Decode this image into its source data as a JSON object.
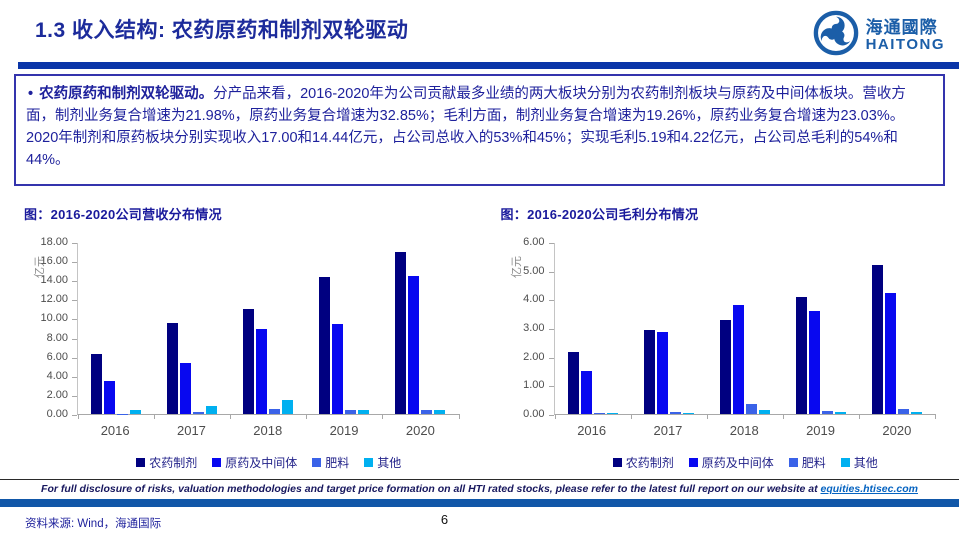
{
  "header": {
    "title": "1.3 收入结构: 农药原药和制剂双轮驱动",
    "logo_cn": "海通國際",
    "logo_en": "HAITONG"
  },
  "summary": {
    "bullet": "•",
    "lead": "农药原药和制剂双轮驱动。",
    "body": "分产品来看，2016-2020年为公司贡献最多业绩的两大板块分别为农药制剂板块与原药及中间体板块。营收方面，制剂业务复合增速为21.98%，原药业务复合增速为32.85%；毛利方面，制剂业务复合增速为19.26%，原药业务复合增速为23.03%。2020年制剂和原药板块分别实现收入17.00和14.44亿元，占公司总收入的53%和45%；实现毛利5.19和4.22亿元，占公司总毛利的54%和44%。"
  },
  "chart_data": [
    {
      "type": "bar",
      "title": "图：2016-2020公司营收分布情况",
      "ylabel": "亿元",
      "categories": [
        "2016",
        "2017",
        "2018",
        "2019",
        "2020"
      ],
      "series": [
        {
          "name": "农药制剂",
          "color": "#000080",
          "values": [
            6.3,
            9.5,
            11.0,
            14.3,
            17.0
          ]
        },
        {
          "name": "原药及中间体",
          "color": "#0808f0",
          "values": [
            3.5,
            5.3,
            8.9,
            9.4,
            14.44
          ]
        },
        {
          "name": "肥料",
          "color": "#3a62e8",
          "values": [
            0.02,
            0.2,
            0.5,
            0.45,
            0.4
          ]
        },
        {
          "name": "其他",
          "color": "#00b0f0",
          "values": [
            0.45,
            0.85,
            1.45,
            0.45,
            0.4
          ]
        }
      ],
      "ylim": [
        0,
        18
      ],
      "ytick_step": 2,
      "grid": false,
      "legend_position": "bottom"
    },
    {
      "type": "bar",
      "title": "图：2016-2020公司毛利分布情况",
      "ylabel": "亿元",
      "categories": [
        "2016",
        "2017",
        "2018",
        "2019",
        "2020"
      ],
      "series": [
        {
          "name": "农药制剂",
          "color": "#000080",
          "values": [
            2.15,
            2.93,
            3.28,
            4.08,
            5.19
          ]
        },
        {
          "name": "原药及中间体",
          "color": "#0808f0",
          "values": [
            1.5,
            2.86,
            3.8,
            3.6,
            4.22
          ]
        },
        {
          "name": "肥料",
          "color": "#3a62e8",
          "values": [
            0.02,
            0.07,
            0.35,
            0.12,
            0.16
          ]
        },
        {
          "name": "其他",
          "color": "#00b0f0",
          "values": [
            0.05,
            0.05,
            0.15,
            0.06,
            0.07
          ]
        }
      ],
      "ylim": [
        0,
        6
      ],
      "ytick_step": 1,
      "grid": false,
      "legend_position": "bottom"
    }
  ],
  "footer": {
    "disclosure_prefix": "For full disclosure of risks, valuation methodologies and target price formation on all HTI rated stocks, please refer to the latest full report on our website at ",
    "disclosure_link": "equities.htisec.com",
    "source": "资料来源: Wind，海通国际",
    "page_number": "6"
  },
  "colors": {
    "title_ink": "#1c2b9b",
    "body_ink": "#1e219c",
    "brand_blue": "#1b5ea8",
    "title_divider": "#0a35a8",
    "footer_bar": "#1157a8",
    "link_blue": "#0563c1",
    "series_navy": "#000080",
    "series_blue": "#0808f0",
    "series_royal": "#3a62e8",
    "series_cyan": "#00b0f0"
  }
}
